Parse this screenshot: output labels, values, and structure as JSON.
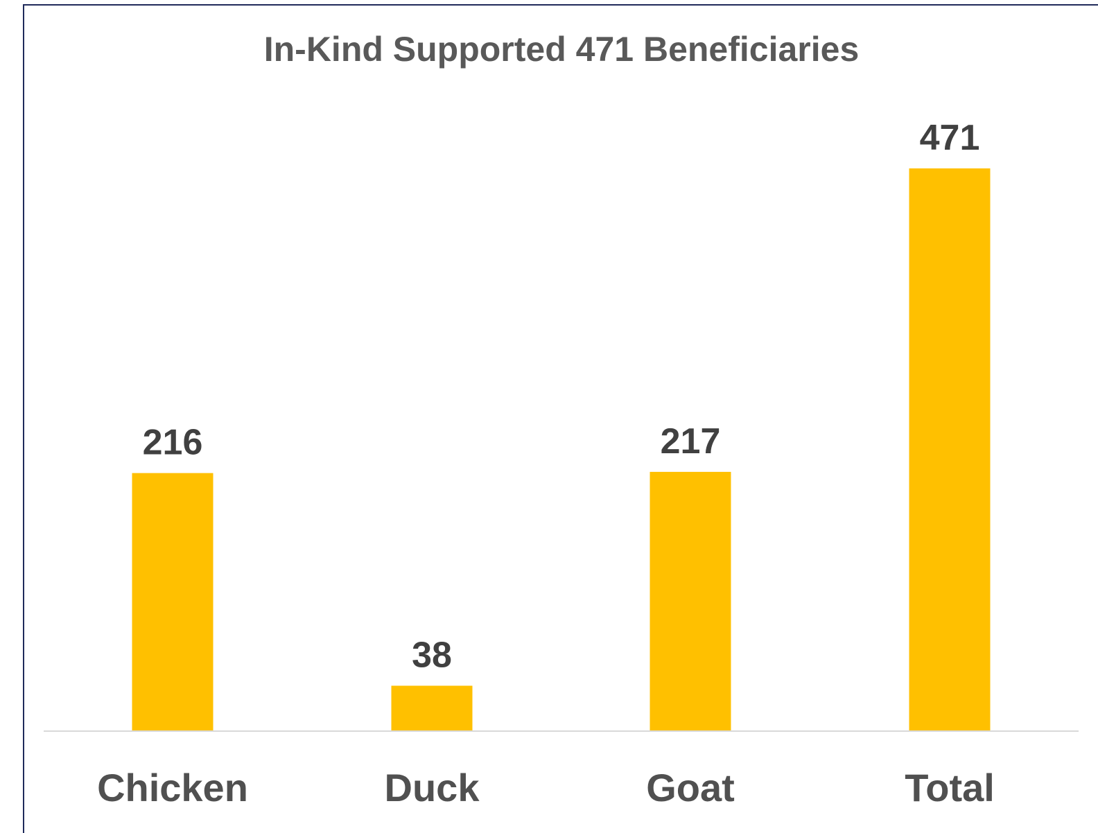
{
  "chart_data": {
    "type": "bar",
    "title": "In-Kind Supported 471 Beneficiaries",
    "categories": [
      "Chicken",
      "Duck",
      "Goat",
      "Total"
    ],
    "values": [
      216,
      38,
      217,
      471
    ],
    "data_labels": [
      "216",
      "38",
      "217",
      "471"
    ],
    "xlabel": "",
    "ylabel": "",
    "ylim": [
      0,
      471
    ],
    "grid": false,
    "legend": "none",
    "colors": {
      "bar": "#FFC000",
      "axis": "#D9D9D9",
      "frame": "#1F2A5A"
    }
  }
}
